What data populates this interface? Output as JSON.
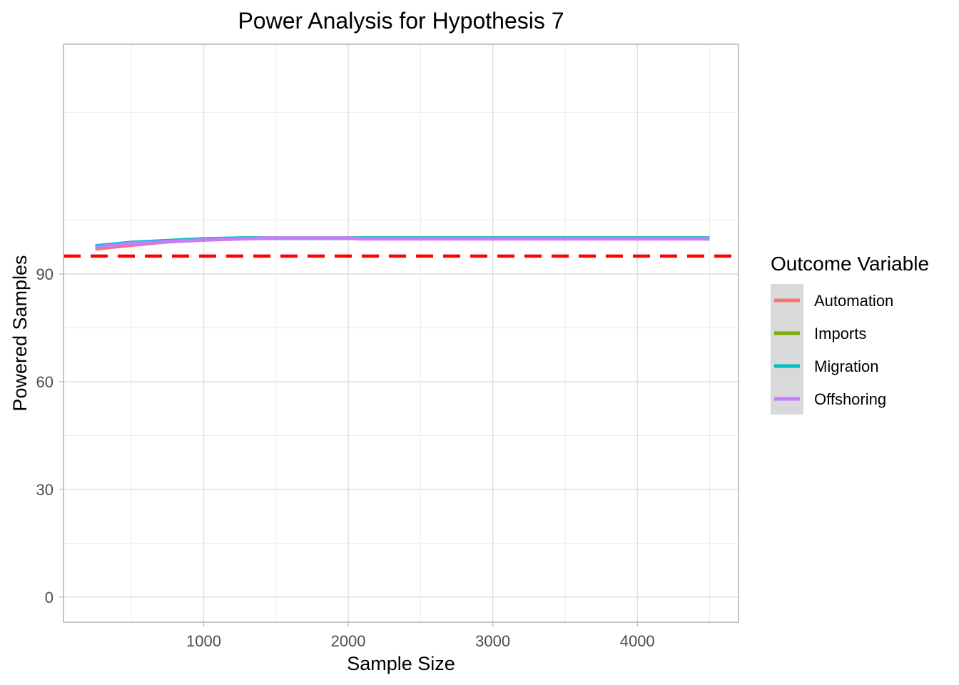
{
  "chart_data": {
    "type": "line",
    "title": "Power Analysis for Hypothesis 7",
    "xlabel": "Sample Size",
    "ylabel": "Powered Samples",
    "xlim": [
      30,
      4700
    ],
    "ylim": [
      -7,
      154
    ],
    "x_ticks": [
      1000,
      2000,
      3000,
      4000
    ],
    "y_ticks": [
      0,
      30,
      60,
      90
    ],
    "x_minor": [
      500,
      1500,
      2500,
      3500,
      4500
    ],
    "y_minor": [
      15,
      45,
      75,
      105,
      135
    ],
    "grid": true,
    "legend": {
      "title": "Outcome Variable",
      "position": "right"
    },
    "reference_line": {
      "y": 95,
      "color": "#ff0000",
      "style": "dashed"
    },
    "series": [
      {
        "name": "Automation",
        "color": "#f8766d",
        "x": [
          250,
          500,
          750,
          1000,
          1250,
          1500,
          1750,
          2000,
          2250,
          2500,
          3000,
          3500,
          4000,
          4500
        ],
        "y": [
          97,
          98,
          99,
          99.5,
          100,
          100,
          100,
          100,
          100,
          100,
          100,
          100,
          100,
          100
        ]
      },
      {
        "name": "Imports",
        "color": "#7cae00",
        "x": [
          250,
          500,
          750,
          1000,
          1250,
          1500,
          1750,
          2000,
          2250,
          2500,
          3000,
          3500,
          4000,
          4500
        ],
        "y": [
          97.5,
          98.5,
          99,
          99.5,
          100,
          100,
          100,
          100,
          100,
          100,
          100,
          100,
          100,
          100
        ]
      },
      {
        "name": "Migration",
        "color": "#00bfc4",
        "x": [
          250,
          500,
          750,
          1000,
          1250,
          1500,
          1750,
          2000,
          2250,
          2500,
          3000,
          3500,
          4000,
          4500
        ],
        "y": [
          97.8,
          98.8,
          99.3,
          99.8,
          100,
          100,
          100,
          100,
          100,
          100,
          100,
          100,
          100,
          100
        ]
      },
      {
        "name": "Offshoring",
        "color": "#c77cff",
        "x": [
          250,
          500,
          750,
          1000,
          1250,
          1500,
          1750,
          2000,
          2100,
          2500,
          3000,
          3500,
          4000,
          4500
        ],
        "y": [
          97.5,
          98.5,
          99,
          99.5,
          99.8,
          100,
          100,
          100,
          99.8,
          99.8,
          99.8,
          99.8,
          99.8,
          99.8
        ]
      }
    ]
  }
}
